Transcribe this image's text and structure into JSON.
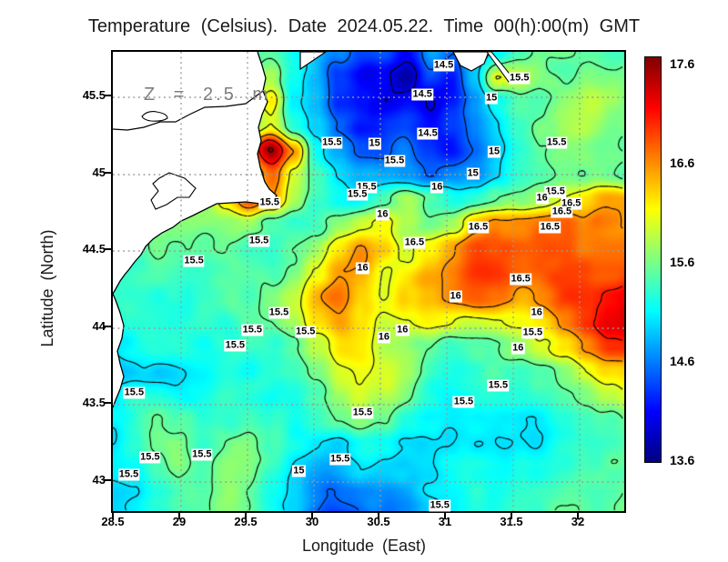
{
  "title": "Temperature (Celsius). Date 2024.05.22. Time 00(h):00(m) GMT",
  "annotation": {
    "depth_label": "Z = 2.5 m"
  },
  "axes": {
    "x": {
      "label": "Longitude (East)",
      "ticks": [
        "28.5",
        "29",
        "29.5",
        "30",
        "30.5",
        "31",
        "31.5",
        "32"
      ]
    },
    "y": {
      "label": "Latitude (North)",
      "ticks": [
        "45.5",
        "45",
        "44.5",
        "44",
        "43.5",
        "43"
      ]
    }
  },
  "colorbar": {
    "colormap": "jet",
    "min": 13.6,
    "max": 17.6,
    "ticks": [
      "17.6",
      "16.6",
      "15.6",
      "14.6",
      "13.6"
    ]
  },
  "chart_data": {
    "type": "heatmap",
    "title": "Temperature (Celsius). Date 2024.05.22. Time 00(h):00(m) GMT",
    "variable": "Temperature",
    "units": "Celsius",
    "date": "2024.05.22",
    "time": "00(h):00(m) GMT",
    "depth": "Z = 2.5 m",
    "xlabel": "Longitude (East)",
    "ylabel": "Latitude (North)",
    "lon_range": [
      28.5,
      32.35
    ],
    "lat_range": [
      42.8,
      45.79
    ],
    "value_range": [
      13.6,
      17.6
    ],
    "contour_interval": 0.5,
    "contour_levels": [
      14,
      14.5,
      15,
      15.5,
      16,
      16.5,
      17,
      17.5
    ],
    "grid": {
      "nx": 24,
      "ny": 20,
      "lon_start": 28.5,
      "lon_step": 0.17,
      "lat_start": 45.79,
      "lat_step": -0.15947,
      "values": [
        [
          15.2,
          15.2,
          15.2,
          15.2,
          15.2,
          15.3,
          15.4,
          15.4,
          15.2,
          15.0,
          14.7,
          14.4,
          14.5,
          14.3,
          14.6,
          14.4,
          14.8,
          15.1,
          15.4,
          15.5,
          15.6,
          15.5,
          15.4,
          15.4
        ],
        [
          15.2,
          15.2,
          15.2,
          15.2,
          15.2,
          15.3,
          15.6,
          15.9,
          15.2,
          14.9,
          14.3,
          13.9,
          14.1,
          13.8,
          14.4,
          14.2,
          14.9,
          16.0,
          15.9,
          15.6,
          15.5,
          15.6,
          15.5,
          15.5
        ],
        [
          15.2,
          15.2,
          15.2,
          15.2,
          15.3,
          15.5,
          16.0,
          16.3,
          15.1,
          14.8,
          14.2,
          14.0,
          13.9,
          14.1,
          14.0,
          14.3,
          14.7,
          15.2,
          15.5,
          15.5,
          15.6,
          15.8,
          15.6,
          15.5
        ],
        [
          15.2,
          15.2,
          15.2,
          15.2,
          15.3,
          15.4,
          15.5,
          16.0,
          15.3,
          15.0,
          14.6,
          14.3,
          14.2,
          14.3,
          14.2,
          14.4,
          14.6,
          15.0,
          15.3,
          15.5,
          15.6,
          15.7,
          15.6,
          15.6
        ],
        [
          15.3,
          15.3,
          15.3,
          15.3,
          15.4,
          15.8,
          16.5,
          17.5,
          16.5,
          15.2,
          14.8,
          14.5,
          14.4,
          14.5,
          14.3,
          14.2,
          14.5,
          14.9,
          15.2,
          15.4,
          15.5,
          15.5,
          15.5,
          15.5
        ],
        [
          15.3,
          15.3,
          15.3,
          15.3,
          15.5,
          15.9,
          16.2,
          16.6,
          15.8,
          15.3,
          15.0,
          14.9,
          14.8,
          14.6,
          14.4,
          14.6,
          14.8,
          15.1,
          15.3,
          15.4,
          15.5,
          15.5,
          15.4,
          15.4
        ],
        [
          15.4,
          15.4,
          15.4,
          15.4,
          15.6,
          16.2,
          16.8,
          16.5,
          15.8,
          15.4,
          15.2,
          15.3,
          15.5,
          15.8,
          15.5,
          15.2,
          15.3,
          15.5,
          15.6,
          15.8,
          16.0,
          16.2,
          16.4,
          16.4
        ],
        [
          15.4,
          15.4,
          15.4,
          15.5,
          15.5,
          15.6,
          15.7,
          15.5,
          15.4,
          15.5,
          15.8,
          16.1,
          16.2,
          15.9,
          15.6,
          15.8,
          16.2,
          16.5,
          16.6,
          16.7,
          16.7,
          16.6,
          16.5,
          16.4
        ],
        [
          15.3,
          15.3,
          15.4,
          15.4,
          15.4,
          15.5,
          15.4,
          15.3,
          15.5,
          15.8,
          16.2,
          16.5,
          16.3,
          16.0,
          16.3,
          16.6,
          16.8,
          16.8,
          16.8,
          16.8,
          16.7,
          16.6,
          16.6,
          16.6
        ],
        [
          15.3,
          15.3,
          15.3,
          15.3,
          15.3,
          15.4,
          15.5,
          15.4,
          15.6,
          16.0,
          16.5,
          16.3,
          16.0,
          16.2,
          16.5,
          16.7,
          16.9,
          16.9,
          16.8,
          16.8,
          16.8,
          16.8,
          16.8,
          16.8
        ],
        [
          15.2,
          15.2,
          15.2,
          15.2,
          15.3,
          15.4,
          15.3,
          15.5,
          15.8,
          16.3,
          16.6,
          16.2,
          15.9,
          16.1,
          16.3,
          16.5,
          16.6,
          16.6,
          16.5,
          16.6,
          16.8,
          17.0,
          17.2,
          17.3
        ],
        [
          15.2,
          15.2,
          15.2,
          15.2,
          15.3,
          15.2,
          15.4,
          15.5,
          15.8,
          16.2,
          16.4,
          16.1,
          15.8,
          15.9,
          16.1,
          16.0,
          15.9,
          16.0,
          16.1,
          16.2,
          16.5,
          16.9,
          17.2,
          17.3
        ],
        [
          15.1,
          15.1,
          15.1,
          15.2,
          15.1,
          15.3,
          15.4,
          15.4,
          15.6,
          16.0,
          16.2,
          16.0,
          15.7,
          15.6,
          15.5,
          15.4,
          15.5,
          15.6,
          15.7,
          15.9,
          16.2,
          16.5,
          16.8,
          16.9
        ],
        [
          15.0,
          15.0,
          15.0,
          15.1,
          15.2,
          15.3,
          15.2,
          15.3,
          15.4,
          15.7,
          16.0,
          16.1,
          15.9,
          15.6,
          15.4,
          15.3,
          15.3,
          15.4,
          15.4,
          15.5,
          15.7,
          16.0,
          16.2,
          16.3
        ],
        [
          15.2,
          15.4,
          15.3,
          15.2,
          15.3,
          15.4,
          15.3,
          15.2,
          15.3,
          15.5,
          15.8,
          16.0,
          15.8,
          15.5,
          15.3,
          15.2,
          15.2,
          15.2,
          15.3,
          15.4,
          15.5,
          15.7,
          15.9,
          16.0
        ],
        [
          15.2,
          15.3,
          15.4,
          15.5,
          15.4,
          15.3,
          15.4,
          15.3,
          15.2,
          15.4,
          15.6,
          15.8,
          15.6,
          15.3,
          15.1,
          15.0,
          15.1,
          15.1,
          15.2,
          15.2,
          15.3,
          15.4,
          15.5,
          15.6
        ],
        [
          15.1,
          15.2,
          15.5,
          15.6,
          15.4,
          15.5,
          15.6,
          15.4,
          15.2,
          15.1,
          15.0,
          15.2,
          15.1,
          15.0,
          14.9,
          14.9,
          15.0,
          15.0,
          15.1,
          15.1,
          15.2,
          15.3,
          15.4,
          15.5
        ],
        [
          15.0,
          15.0,
          15.3,
          15.6,
          15.5,
          15.6,
          15.5,
          15.3,
          15.1,
          14.9,
          14.8,
          14.9,
          14.8,
          14.8,
          14.9,
          15.0,
          15.1,
          15.1,
          15.2,
          15.2,
          15.2,
          15.3,
          15.4,
          15.4
        ],
        [
          14.9,
          14.9,
          15.1,
          15.4,
          15.5,
          15.6,
          15.4,
          15.2,
          15.0,
          14.7,
          14.5,
          14.6,
          14.7,
          14.8,
          15.0,
          15.1,
          15.2,
          15.2,
          15.3,
          15.3,
          15.3,
          15.4,
          15.5,
          15.6
        ],
        [
          14.9,
          14.9,
          15.0,
          15.3,
          15.5,
          15.5,
          15.4,
          15.3,
          15.0,
          14.5,
          14.3,
          14.4,
          14.6,
          14.8,
          15.0,
          15.1,
          15.2,
          15.2,
          15.3,
          15.3,
          15.4,
          15.4,
          15.5,
          15.6
        ]
      ]
    },
    "contour_labels": [
      [
        30.99,
        45.7,
        "14.5"
      ],
      [
        30.83,
        45.51,
        "14.5"
      ],
      [
        30.87,
        45.26,
        "14.5"
      ],
      [
        31.56,
        45.62,
        "15.5"
      ],
      [
        31.35,
        45.49,
        "15"
      ],
      [
        31.84,
        45.2,
        "15.5"
      ],
      [
        31.37,
        45.14,
        "15"
      ],
      [
        30.15,
        45.2,
        "15.5"
      ],
      [
        30.47,
        45.19,
        "15"
      ],
      [
        30.62,
        45.08,
        "15.5"
      ],
      [
        31.21,
        45.0,
        "15"
      ],
      [
        29.68,
        44.81,
        "15.5"
      ],
      [
        30.41,
        44.91,
        "15.5"
      ],
      [
        30.34,
        44.86,
        "15.5"
      ],
      [
        30.94,
        44.91,
        "16"
      ],
      [
        30.53,
        44.73,
        "16"
      ],
      [
        30.77,
        44.55,
        "16.5"
      ],
      [
        31.25,
        44.65,
        "16.5"
      ],
      [
        31.83,
        44.88,
        "15.5"
      ],
      [
        31.73,
        44.84,
        "16"
      ],
      [
        31.95,
        44.8,
        "16.5"
      ],
      [
        31.88,
        44.75,
        "16.5"
      ],
      [
        31.79,
        44.65,
        "16.5"
      ],
      [
        30.38,
        44.38,
        "16"
      ],
      [
        31.57,
        44.31,
        "16.5"
      ],
      [
        31.08,
        44.2,
        "16"
      ],
      [
        31.69,
        44.09,
        "16"
      ],
      [
        31.66,
        43.96,
        "15.5"
      ],
      [
        31.55,
        43.86,
        "16"
      ],
      [
        30.68,
        43.98,
        "16"
      ],
      [
        30.54,
        43.93,
        "16"
      ],
      [
        29.11,
        44.43,
        "15.5"
      ],
      [
        29.6,
        44.56,
        "15.5"
      ],
      [
        29.75,
        44.09,
        "15.5"
      ],
      [
        29.55,
        43.98,
        "15.5"
      ],
      [
        29.95,
        43.97,
        "15.5"
      ],
      [
        29.42,
        43.88,
        "15.5"
      ],
      [
        28.66,
        43.57,
        "15.5"
      ],
      [
        31.4,
        43.62,
        "15.5"
      ],
      [
        31.14,
        43.51,
        "15.5"
      ],
      [
        30.38,
        43.44,
        "15.5"
      ],
      [
        30.21,
        43.14,
        "15.5"
      ],
      [
        29.17,
        43.17,
        "15.5"
      ],
      [
        28.78,
        43.15,
        "15.5"
      ],
      [
        28.62,
        43.04,
        "15.5"
      ],
      [
        29.9,
        43.06,
        "15"
      ],
      [
        30.96,
        42.84,
        "15.5"
      ]
    ]
  }
}
